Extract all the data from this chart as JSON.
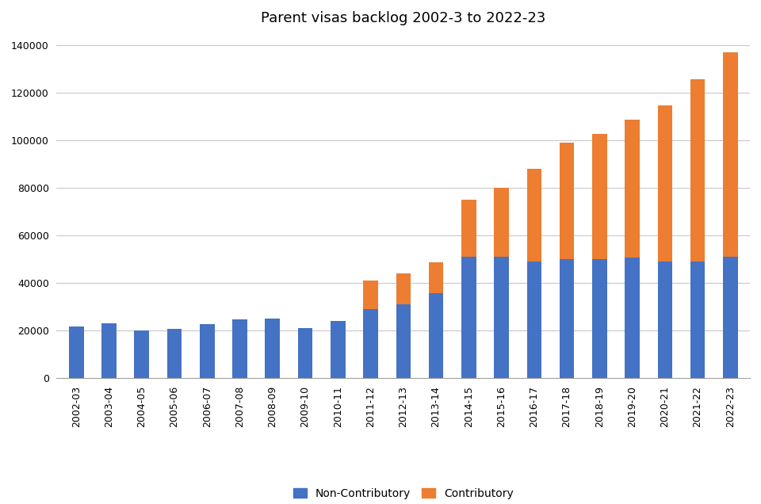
{
  "title": "Parent visas backlog 2002-3 to 2022-23",
  "categories": [
    "2002-03",
    "2003-04",
    "2004-05",
    "2005-06",
    "2006-07",
    "2007-08",
    "2008-09",
    "2009-10",
    "2010-11",
    "2011-12",
    "2012-13",
    "2013-14",
    "2014-15",
    "2015-16",
    "2016-17",
    "2017-18",
    "2018-19",
    "2019-20",
    "2020-21",
    "2021-22",
    "2022-23"
  ],
  "non_contributory": [
    21500,
    23000,
    20000,
    20500,
    22500,
    24500,
    25000,
    21000,
    24000,
    29000,
    31000,
    35500,
    51000,
    51000,
    49000,
    50000,
    50000,
    50500,
    49000,
    49000,
    51000
  ],
  "contributory": [
    0,
    0,
    0,
    0,
    0,
    0,
    0,
    0,
    0,
    12000,
    13000,
    13000,
    24000,
    29000,
    39000,
    49000,
    52500,
    58000,
    65500,
    76500,
    86000
  ],
  "non_contributory_color": "#4472C4",
  "contributory_color": "#ED7D31",
  "ylim": [
    0,
    145000
  ],
  "yticks": [
    0,
    20000,
    40000,
    60000,
    80000,
    100000,
    120000,
    140000
  ],
  "background_color": "#ffffff",
  "grid_color": "#c8c8c8",
  "legend_labels": [
    "Non-Contributory",
    "Contributory"
  ],
  "title_fontsize": 13,
  "tick_fontsize": 9,
  "legend_fontsize": 10,
  "bar_width": 0.45
}
